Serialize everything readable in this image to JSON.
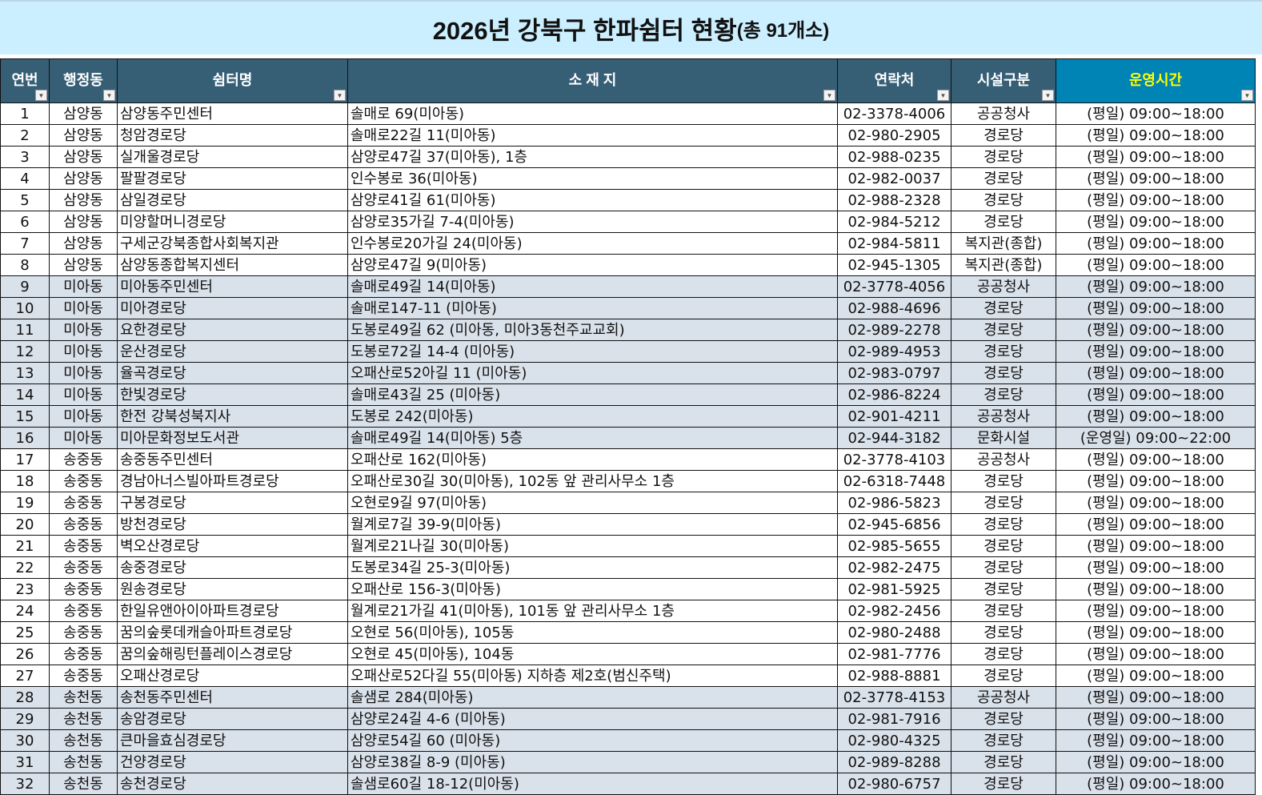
{
  "title": {
    "main": "2026년 강북구 한파쉼터 현황",
    "sub": "(총 91개소)"
  },
  "colors": {
    "title_bg": "#CCEFFF",
    "header_bg": "#365F76",
    "hours_header_bg": "#0083B5",
    "hours_header_text": "#FFFF00",
    "shaded_row": "#D9E1EA"
  },
  "headers": [
    "연번",
    "행정동",
    "쉼터명",
    "소 재 지",
    "연락처",
    "시설구분",
    "운영시간"
  ],
  "filter_icon": "dropdown-arrow-icon",
  "rows": [
    [
      "1",
      "삼양동",
      "삼양동주민센터",
      "솔매로 69(미아동)",
      "02-3378-4006",
      "공공청사",
      "(평일) 09:00~18:00"
    ],
    [
      "2",
      "삼양동",
      "청암경로당",
      "솔매로22길 11(미아동)",
      "02-980-2905",
      "경로당",
      "(평일) 09:00~18:00"
    ],
    [
      "3",
      "삼양동",
      "실개울경로당",
      "삼양로47길 37(미아동), 1층",
      "02-988-0235",
      "경로당",
      "(평일) 09:00~18:00"
    ],
    [
      "4",
      "삼양동",
      "팔팔경로당",
      "인수봉로 36(미아동)",
      "02-982-0037",
      "경로당",
      "(평일) 09:00~18:00"
    ],
    [
      "5",
      "삼양동",
      "삼일경로당",
      "삼양로41길 61(미아동)",
      "02-988-2328",
      "경로당",
      "(평일) 09:00~18:00"
    ],
    [
      "6",
      "삼양동",
      "미양할머니경로당",
      "삼양로35가길 7-4(미아동)",
      "02-984-5212",
      "경로당",
      "(평일) 09:00~18:00"
    ],
    [
      "7",
      "삼양동",
      "구세군강북종합사회복지관",
      "인수봉로20가길 24(미아동)",
      "02-984-5811",
      "복지관(종합)",
      "(평일) 09:00~18:00"
    ],
    [
      "8",
      "삼양동",
      "삼양동종합복지센터",
      "삼양로47길 9(미아동)",
      "02-945-1305",
      "복지관(종합)",
      "(평일) 09:00~18:00"
    ],
    [
      "9",
      "미아동",
      "미아동주민센터",
      "솔매로49길 14(미아동)",
      "02-3778-4056",
      "공공청사",
      "(평일) 09:00~18:00"
    ],
    [
      "10",
      "미아동",
      "미아경로당",
      "솔매로147-11 (미아동)",
      "02-988-4696",
      "경로당",
      "(평일) 09:00~18:00"
    ],
    [
      "11",
      "미아동",
      "요한경로당",
      "도봉로49길 62 (미아동, 미아3동천주교교회)",
      "02-989-2278",
      "경로당",
      "(평일) 09:00~18:00"
    ],
    [
      "12",
      "미아동",
      "운산경로당",
      "도봉로72길 14-4 (미아동)",
      "02-989-4953",
      "경로당",
      "(평일) 09:00~18:00"
    ],
    [
      "13",
      "미아동",
      "율곡경로당",
      "오패산로52아길 11 (미아동)",
      "02-983-0797",
      "경로당",
      "(평일) 09:00~18:00"
    ],
    [
      "14",
      "미아동",
      "한빛경로당",
      "솔매로43길 25 (미아동)",
      "02-986-8224",
      "경로당",
      "(평일) 09:00~18:00"
    ],
    [
      "15",
      "미아동",
      "한전 강북성북지사",
      "도봉로 242(미아동)",
      "02-901-4211",
      "공공청사",
      "(평일) 09:00~18:00"
    ],
    [
      "16",
      "미아동",
      "미아문화정보도서관",
      "솔매로49길 14(미아동) 5층",
      "02-944-3182",
      "문화시설",
      "(운영일) 09:00~22:00"
    ],
    [
      "17",
      "송중동",
      "송중동주민센터",
      "오패산로 162(미아동)",
      "02-3778-4103",
      "공공청사",
      "(평일) 09:00~18:00"
    ],
    [
      "18",
      "송중동",
      "경남아너스빌아파트경로당",
      "오패산로30길 30(미아동), 102동 앞 관리사무소 1층",
      "02-6318-7448",
      "경로당",
      "(평일) 09:00~18:00"
    ],
    [
      "19",
      "송중동",
      "구봉경로당",
      "오현로9길 97(미아동)",
      "02-986-5823",
      "경로당",
      "(평일) 09:00~18:00"
    ],
    [
      "20",
      "송중동",
      "방천경로당",
      "월계로7길 39-9(미아동)",
      "02-945-6856",
      "경로당",
      "(평일) 09:00~18:00"
    ],
    [
      "21",
      "송중동",
      "벽오산경로당",
      "월계로21나길 30(미아동)",
      "02-985-5655",
      "경로당",
      "(평일) 09:00~18:00"
    ],
    [
      "22",
      "송중동",
      "송중경로당",
      "도봉로34길 25-3(미아동)",
      "02-982-2475",
      "경로당",
      "(평일) 09:00~18:00"
    ],
    [
      "23",
      "송중동",
      "원송경로당",
      "오패산로 156-3(미아동)",
      "02-981-5925",
      "경로당",
      "(평일) 09:00~18:00"
    ],
    [
      "24",
      "송중동",
      "한일유앤아이아파트경로당",
      "월계로21가길 41(미아동), 101동 앞 관리사무소 1층",
      "02-982-2456",
      "경로당",
      "(평일) 09:00~18:00"
    ],
    [
      "25",
      "송중동",
      "꿈의숲롯데캐슬아파트경로당",
      "오현로 56(미아동), 105동",
      "02-980-2488",
      "경로당",
      "(평일) 09:00~18:00"
    ],
    [
      "26",
      "송중동",
      "꿈의숲해링턴플레이스경로당",
      "오현로 45(미아동), 104동",
      "02-981-7776",
      "경로당",
      "(평일) 09:00~18:00"
    ],
    [
      "27",
      "송중동",
      "오패산경로당",
      "오패산로52다길 55(미아동) 지하층 제2호(범신주택)",
      "02-988-8881",
      "경로당",
      "(평일) 09:00~18:00"
    ],
    [
      "28",
      "송천동",
      "송천동주민센터",
      "솔샘로 284(미아동)",
      "02-3778-4153",
      "공공청사",
      "(평일) 09:00~18:00"
    ],
    [
      "29",
      "송천동",
      "송암경로당",
      "삼양로24길 4-6 (미아동)",
      "02-981-7916",
      "경로당",
      "(평일) 09:00~18:00"
    ],
    [
      "30",
      "송천동",
      "큰마을효심경로당",
      "삼양로54길 60 (미아동)",
      "02-980-4325",
      "경로당",
      "(평일) 09:00~18:00"
    ],
    [
      "31",
      "송천동",
      "건양경로당",
      "삼양로38길 8-9 (미아동)",
      "02-989-8288",
      "경로당",
      "(평일) 09:00~18:00"
    ],
    [
      "32",
      "송천동",
      "송천경로당",
      "솔샘로60길 18-12(미아동)",
      "02-980-6757",
      "경로당",
      "(평일) 09:00~18:00"
    ]
  ],
  "shaded_groups": [
    "미아동",
    "송천동"
  ]
}
